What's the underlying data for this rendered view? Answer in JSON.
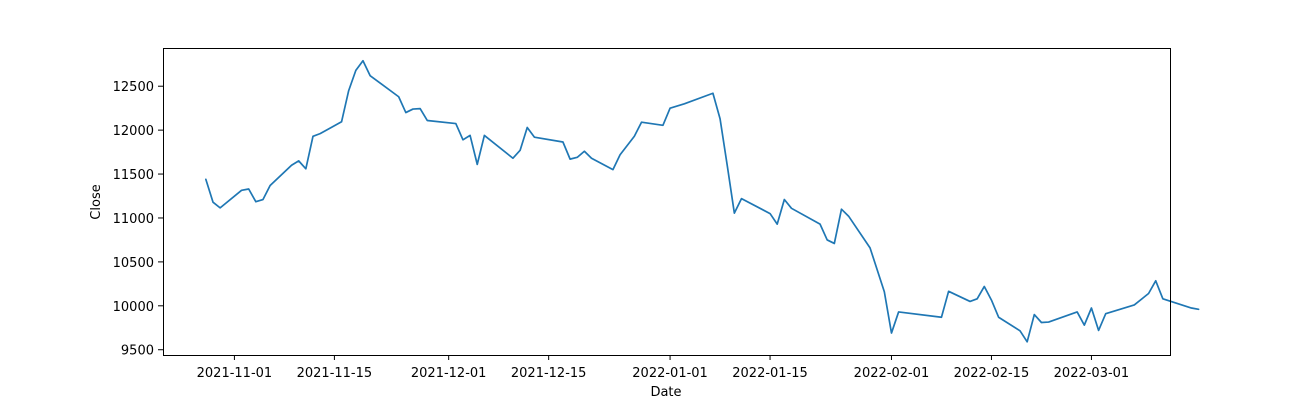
{
  "chart_data": {
    "type": "line",
    "xlabel": "Date",
    "ylabel": "Close",
    "xlim": [
      "2021-10-22",
      "2022-03-12"
    ],
    "ylim": [
      9440,
      12935
    ],
    "yticks": [
      9500,
      10000,
      10500,
      11000,
      11500,
      12000,
      12500
    ],
    "xticks": [
      {
        "date": "2021-11-01",
        "label": "2021-11-01"
      },
      {
        "date": "2021-11-15",
        "label": "2021-11-15"
      },
      {
        "date": "2021-12-01",
        "label": "2021-12-01"
      },
      {
        "date": "2021-12-15",
        "label": "2021-12-15"
      },
      {
        "date": "2022-01-01",
        "label": "2022-01-01"
      },
      {
        "date": "2022-01-15",
        "label": "2022-01-15"
      },
      {
        "date": "2022-02-01",
        "label": "2022-02-01"
      },
      {
        "date": "2022-02-15",
        "label": "2022-02-15"
      },
      {
        "date": "2022-03-01",
        "label": "2022-03-01"
      }
    ],
    "grid": false,
    "line_color": "#1f77b4",
    "series": [
      {
        "points": [
          [
            "2021-10-28",
            11440
          ],
          [
            "2021-10-29",
            11180
          ],
          [
            "2021-10-30",
            11115
          ],
          [
            "2021-11-02",
            11315
          ],
          [
            "2021-11-03",
            11330
          ],
          [
            "2021-11-04",
            11185
          ],
          [
            "2021-11-05",
            11210
          ],
          [
            "2021-11-06",
            11370
          ],
          [
            "2021-11-09",
            11600
          ],
          [
            "2021-11-10",
            11650
          ],
          [
            "2021-11-11",
            11560
          ],
          [
            "2021-11-12",
            11930
          ],
          [
            "2021-11-13",
            11960
          ],
          [
            "2021-11-16",
            12095
          ],
          [
            "2021-11-17",
            12450
          ],
          [
            "2021-11-18",
            12680
          ],
          [
            "2021-11-19",
            12790
          ],
          [
            "2021-11-20",
            12620
          ],
          [
            "2021-11-24",
            12380
          ],
          [
            "2021-11-25",
            12200
          ],
          [
            "2021-11-26",
            12240
          ],
          [
            "2021-11-27",
            12245
          ],
          [
            "2021-11-28",
            12110
          ],
          [
            "2021-12-02",
            12075
          ],
          [
            "2021-12-03",
            11890
          ],
          [
            "2021-12-04",
            11940
          ],
          [
            "2021-12-05",
            11610
          ],
          [
            "2021-12-06",
            11940
          ],
          [
            "2021-12-10",
            11680
          ],
          [
            "2021-12-11",
            11770
          ],
          [
            "2021-12-12",
            12030
          ],
          [
            "2021-12-13",
            11920
          ],
          [
            "2021-12-17",
            11865
          ],
          [
            "2021-12-18",
            11670
          ],
          [
            "2021-12-19",
            11690
          ],
          [
            "2021-12-20",
            11760
          ],
          [
            "2021-12-21",
            11680
          ],
          [
            "2021-12-24",
            11550
          ],
          [
            "2021-12-25",
            11720
          ],
          [
            "2021-12-27",
            11930
          ],
          [
            "2021-12-28",
            12090
          ],
          [
            "2021-12-31",
            12055
          ],
          [
            "2022-01-01",
            12250
          ],
          [
            "2022-01-03",
            12300
          ],
          [
            "2022-01-07",
            12420
          ],
          [
            "2022-01-08",
            12130
          ],
          [
            "2022-01-09",
            11600
          ],
          [
            "2022-01-10",
            11055
          ],
          [
            "2022-01-11",
            11220
          ],
          [
            "2022-01-15",
            11050
          ],
          [
            "2022-01-16",
            10930
          ],
          [
            "2022-01-17",
            11210
          ],
          [
            "2022-01-18",
            11110
          ],
          [
            "2022-01-22",
            10930
          ],
          [
            "2022-01-23",
            10750
          ],
          [
            "2022-01-24",
            10710
          ],
          [
            "2022-01-25",
            11100
          ],
          [
            "2022-01-26",
            11020
          ],
          [
            "2022-01-29",
            10660
          ],
          [
            "2022-01-31",
            10160
          ],
          [
            "2022-02-01",
            9690
          ],
          [
            "2022-02-02",
            9930
          ],
          [
            "2022-02-08",
            9870
          ],
          [
            "2022-02-09",
            10165
          ],
          [
            "2022-02-12",
            10050
          ],
          [
            "2022-02-13",
            10080
          ],
          [
            "2022-02-14",
            10220
          ],
          [
            "2022-02-15",
            10065
          ],
          [
            "2022-02-16",
            9870
          ],
          [
            "2022-02-19",
            9715
          ],
          [
            "2022-02-20",
            9590
          ],
          [
            "2022-02-21",
            9900
          ],
          [
            "2022-02-22",
            9810
          ],
          [
            "2022-02-23",
            9815
          ],
          [
            "2022-02-27",
            9930
          ],
          [
            "2022-02-28",
            9780
          ],
          [
            "2022-03-01",
            9975
          ],
          [
            "2022-03-02",
            9720
          ],
          [
            "2022-03-03",
            9910
          ],
          [
            "2022-03-07",
            10010
          ],
          [
            "2022-03-09",
            10140
          ],
          [
            "2022-03-10",
            10285
          ],
          [
            "2022-03-11",
            10080
          ],
          [
            "2022-03-15",
            9975
          ],
          [
            "2022-03-16",
            9960
          ]
        ]
      }
    ]
  }
}
